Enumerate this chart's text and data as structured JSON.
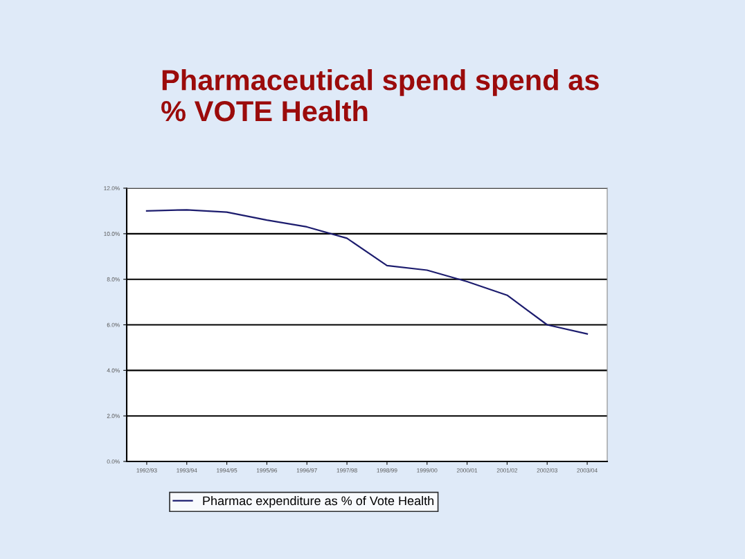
{
  "chart_data": {
    "type": "line",
    "title": "Pharmaceutical spend spend as\n% VOTE Health",
    "categories": [
      "1992/93",
      "1993/94",
      "1994/95",
      "1995/96",
      "1996/97",
      "1997/98",
      "1998/99",
      "1999/00",
      "2000/01",
      "2001/02",
      "2002/03",
      "2003/04"
    ],
    "series": [
      {
        "name": "Pharmac expenditure as % of Vote Health",
        "color": "#1c1c6e",
        "values": [
          11.0,
          11.05,
          10.95,
          10.6,
          10.3,
          9.8,
          8.6,
          8.4,
          7.9,
          7.3,
          6.0,
          5.6
        ]
      }
    ],
    "ylim": [
      0,
      12
    ],
    "yticks": [
      {
        "value": 0,
        "label": "0.0%"
      },
      {
        "value": 2,
        "label": "2.0%"
      },
      {
        "value": 4,
        "label": "4.0%"
      },
      {
        "value": 6,
        "label": "6.0%"
      },
      {
        "value": 8,
        "label": "8.0%"
      },
      {
        "value": 10,
        "label": "10.0%"
      },
      {
        "value": 12,
        "label": "12.0%"
      }
    ],
    "grid": "y",
    "legend": "bottom",
    "marker": "none",
    "line_style": "solid"
  }
}
